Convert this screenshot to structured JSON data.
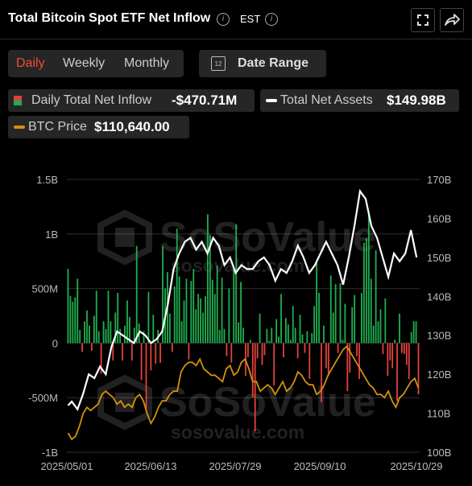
{
  "header": {
    "title": "Total Bitcoin Spot ETF Net Inflow",
    "timezone": "EST"
  },
  "periods": [
    "Daily",
    "Weekly",
    "Monthly"
  ],
  "active_period": "Daily",
  "date_range_label": "Date Range",
  "calendar_day": "12",
  "legend": {
    "net_inflow": {
      "label": "Daily Total Net Inflow",
      "value": "-$470.71M"
    },
    "net_assets": {
      "label": "Total Net Assets",
      "value": "$149.98B"
    },
    "btc_price": {
      "label": "BTC Price",
      "value": "$110,640.00"
    }
  },
  "watermark": {
    "brand": "SoSoValue",
    "site": "sosovalue.com"
  },
  "colors": {
    "positive": "#1fae4f",
    "negative": "#e2403a",
    "assets_line": "#ffffff",
    "btc_line": "#d4910c",
    "accent": "#f24b36"
  },
  "chart_data": {
    "type": "bar",
    "x_tick_labels": [
      "2025/05/01",
      "2025/06/13",
      "2025/07/29",
      "2025/09/10",
      "2025/10/29"
    ],
    "y_left": {
      "ticks": [
        "1.5B",
        "1B",
        "500M",
        "0",
        "-500M",
        "-1B"
      ],
      "tick_values": [
        1500,
        1000,
        500,
        0,
        -500,
        -1000
      ],
      "unit": "M",
      "range": [
        -1000,
        1500
      ]
    },
    "y_right": {
      "ticks": [
        "170B",
        "160B",
        "150B",
        "140B",
        "130B",
        "120B",
        "110B",
        "100B"
      ],
      "tick_values": [
        170,
        160,
        150,
        140,
        130,
        120,
        110,
        100
      ],
      "unit": "B",
      "range": [
        100,
        170
      ]
    },
    "grid": true,
    "net_inflow_daily_M": [
      680,
      430,
      380,
      420,
      590,
      120,
      -80,
      200,
      300,
      160,
      -70,
      250,
      480,
      110,
      -280,
      200,
      130,
      480,
      200,
      -160,
      280,
      460,
      130,
      -160,
      160,
      390,
      240,
      -160,
      140,
      890,
      180,
      -340,
      110,
      -600,
      470,
      -250,
      260,
      -190,
      120,
      -180,
      890,
      500,
      650,
      270,
      -80,
      520,
      1050,
      610,
      200,
      390,
      590,
      -150,
      570,
      680,
      310,
      450,
      410,
      280,
      430,
      1180,
      990,
      580,
      450,
      710,
      120,
      600,
      130,
      -120,
      500,
      -180,
      700,
      1090,
      190,
      560,
      140,
      -300,
      -130,
      30,
      -500,
      -810,
      -140,
      270,
      -200,
      -110,
      130,
      20,
      140,
      -390,
      220,
      60,
      450,
      -130,
      230,
      170,
      30,
      340,
      140,
      -140,
      260,
      80,
      -90,
      110,
      -330,
      90,
      340,
      750,
      460,
      -540,
      160,
      -230,
      -300,
      620,
      280,
      540,
      -90,
      550,
      30,
      360,
      -440,
      -270,
      330,
      440,
      -120,
      -330,
      460,
      920,
      960,
      1210,
      590,
      160,
      850,
      200,
      310,
      -100,
      410,
      -300,
      -160,
      -230,
      30,
      -530,
      270,
      -90,
      -100,
      -200,
      -330,
      100,
      200,
      200,
      -470
    ],
    "total_net_assets_B": [
      [
        0,
        112
      ],
      [
        2,
        113
      ],
      [
        5,
        111
      ],
      [
        8,
        115
      ],
      [
        11,
        120
      ],
      [
        14,
        119
      ],
      [
        17,
        122
      ],
      [
        20,
        120
      ],
      [
        23,
        127
      ],
      [
        26,
        131
      ],
      [
        29,
        130
      ],
      [
        32,
        129
      ],
      [
        35,
        128
      ],
      [
        38,
        131
      ],
      [
        41,
        130
      ],
      [
        44,
        128
      ],
      [
        47,
        129
      ],
      [
        50,
        131
      ],
      [
        53,
        138
      ],
      [
        56,
        147
      ],
      [
        59,
        151
      ],
      [
        62,
        154
      ],
      [
        65,
        155
      ],
      [
        68,
        152
      ],
      [
        71,
        154
      ],
      [
        74,
        151
      ],
      [
        77,
        155
      ],
      [
        80,
        153
      ],
      [
        83,
        148
      ],
      [
        86,
        150
      ],
      [
        89,
        146
      ],
      [
        92,
        148
      ],
      [
        95,
        147
      ],
      [
        98,
        147
      ],
      [
        101,
        149
      ],
      [
        104,
        150
      ],
      [
        107,
        148
      ],
      [
        110,
        144
      ],
      [
        113,
        147
      ],
      [
        116,
        146
      ],
      [
        119,
        149
      ],
      [
        122,
        153
      ],
      [
        125,
        150
      ],
      [
        128,
        146
      ],
      [
        131,
        148
      ],
      [
        134,
        151
      ],
      [
        137,
        154
      ],
      [
        140,
        151
      ],
      [
        143,
        148
      ],
      [
        146,
        143
      ],
      [
        149,
        150
      ],
      [
        152,
        158
      ],
      [
        155,
        167
      ],
      [
        158,
        165
      ],
      [
        161,
        158
      ],
      [
        164,
        155
      ],
      [
        167,
        150
      ],
      [
        170,
        145
      ],
      [
        173,
        151
      ],
      [
        176,
        149
      ],
      [
        179,
        151
      ],
      [
        182,
        157
      ],
      [
        185,
        150
      ]
    ],
    "btc_price_K": [
      [
        0,
        96
      ],
      [
        2,
        94
      ],
      [
        4,
        95
      ],
      [
        6,
        98
      ],
      [
        8,
        102
      ],
      [
        10,
        104
      ],
      [
        12,
        103
      ],
      [
        14,
        104
      ],
      [
        16,
        105
      ],
      [
        18,
        108
      ],
      [
        20,
        109
      ],
      [
        22,
        108
      ],
      [
        24,
        107
      ],
      [
        26,
        105
      ],
      [
        28,
        106
      ],
      [
        30,
        104
      ],
      [
        32,
        105
      ],
      [
        34,
        104
      ],
      [
        36,
        107
      ],
      [
        38,
        108
      ],
      [
        40,
        106
      ],
      [
        42,
        102
      ],
      [
        44,
        99
      ],
      [
        46,
        101
      ],
      [
        48,
        104
      ],
      [
        50,
        106
      ],
      [
        52,
        106
      ],
      [
        54,
        108
      ],
      [
        56,
        109
      ],
      [
        58,
        109
      ],
      [
        60,
        115
      ],
      [
        62,
        117
      ],
      [
        64,
        118
      ],
      [
        66,
        118
      ],
      [
        68,
        117
      ],
      [
        70,
        119
      ],
      [
        72,
        116
      ],
      [
        74,
        115
      ],
      [
        76,
        114
      ],
      [
        78,
        114
      ],
      [
        80,
        113
      ],
      [
        82,
        112
      ],
      [
        84,
        116
      ],
      [
        86,
        117
      ],
      [
        88,
        114
      ],
      [
        90,
        115
      ],
      [
        92,
        118
      ],
      [
        94,
        119
      ],
      [
        96,
        116
      ],
      [
        98,
        112
      ],
      [
        100,
        112
      ],
      [
        102,
        109
      ],
      [
        104,
        110
      ],
      [
        106,
        111
      ],
      [
        108,
        110
      ],
      [
        110,
        108
      ],
      [
        112,
        110
      ],
      [
        114,
        112
      ],
      [
        116,
        109
      ],
      [
        118,
        110
      ],
      [
        120,
        112
      ],
      [
        122,
        115
      ],
      [
        124,
        114
      ],
      [
        126,
        112
      ],
      [
        128,
        111
      ],
      [
        130,
        111
      ],
      [
        132,
        108
      ],
      [
        134,
        109
      ],
      [
        136,
        111
      ],
      [
        138,
        114
      ],
      [
        140,
        116
      ],
      [
        142,
        118
      ],
      [
        144,
        120
      ],
      [
        146,
        122
      ],
      [
        148,
        123
      ],
      [
        150,
        121
      ],
      [
        152,
        119
      ],
      [
        154,
        117
      ],
      [
        156,
        115
      ],
      [
        158,
        113
      ],
      [
        160,
        111
      ],
      [
        162,
        110
      ],
      [
        164,
        108
      ],
      [
        166,
        108
      ],
      [
        168,
        107
      ],
      [
        170,
        109
      ],
      [
        172,
        106
      ],
      [
        174,
        104
      ],
      [
        176,
        107
      ],
      [
        178,
        108
      ],
      [
        180,
        110
      ],
      [
        182,
        112
      ],
      [
        184,
        113
      ],
      [
        186,
        110
      ]
    ]
  }
}
